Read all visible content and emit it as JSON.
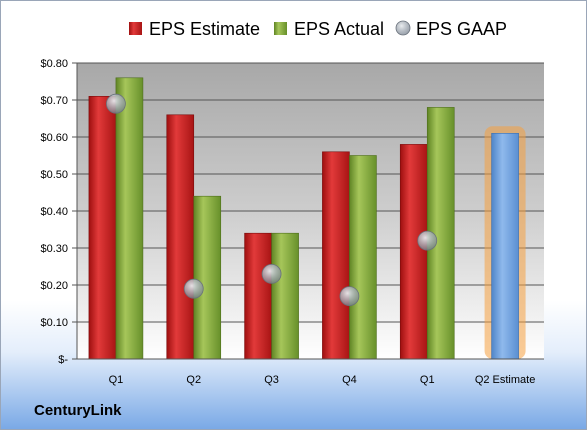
{
  "chart_data": {
    "type": "bar",
    "categories": [
      "Q1",
      "Q2",
      "Q3",
      "Q4",
      "Q1",
      "Q2 Estimate"
    ],
    "series": [
      {
        "name": "EPS Estimate",
        "kind": "bar",
        "color": "#d42222",
        "values": [
          0.71,
          0.66,
          0.34,
          0.56,
          0.58,
          null
        ]
      },
      {
        "name": "EPS Actual",
        "kind": "bar",
        "color": "#8cb040",
        "values": [
          0.76,
          0.44,
          0.34,
          0.55,
          0.68,
          null
        ]
      },
      {
        "name": "EPS GAAP",
        "kind": "marker",
        "color": "#9aa3ae",
        "values": [
          0.69,
          0.19,
          0.23,
          0.17,
          0.32,
          null
        ]
      }
    ],
    "highlight": {
      "category": "Q2 Estimate",
      "value": 0.61,
      "color": "#6fa0dd",
      "glow": "#f5a040"
    },
    "y_ticks": [
      {
        "value": 0.8,
        "label": "$0.80"
      },
      {
        "value": 0.7,
        "label": "$0.70"
      },
      {
        "value": 0.6,
        "label": "$0.60"
      },
      {
        "value": 0.5,
        "label": "$0.50"
      },
      {
        "value": 0.4,
        "label": "$0.40"
      },
      {
        "value": 0.3,
        "label": "$0.30"
      },
      {
        "value": 0.2,
        "label": "$0.20"
      },
      {
        "value": 0.1,
        "label": "$0.10"
      },
      {
        "value": 0,
        "label": "$-"
      }
    ],
    "ylim": [
      0,
      0.8
    ],
    "grid": true,
    "legend_position": "top"
  },
  "company": "CenturyLink"
}
